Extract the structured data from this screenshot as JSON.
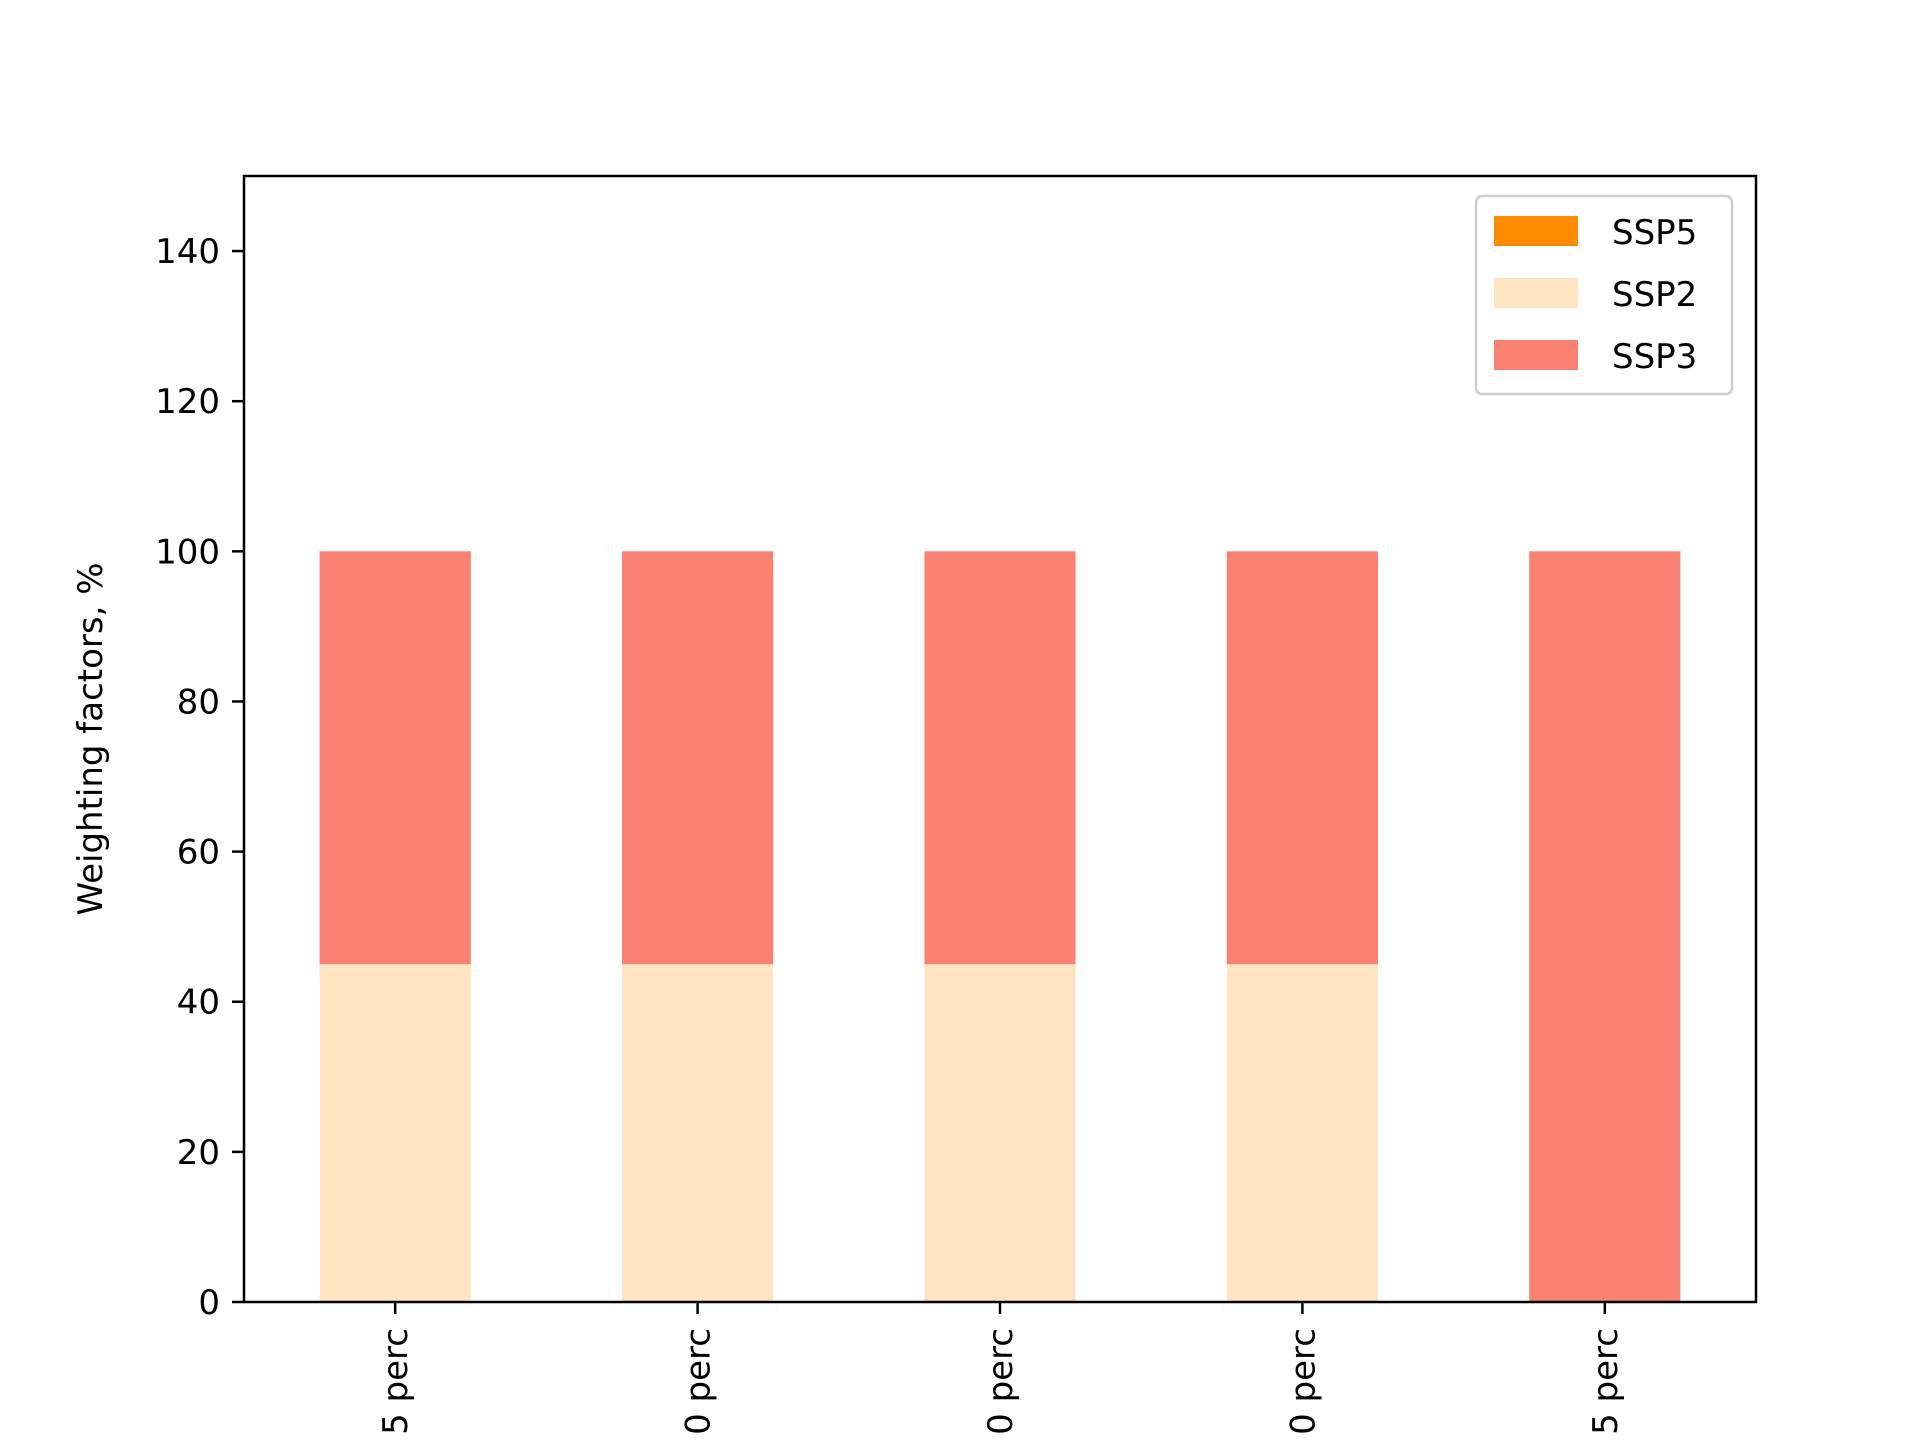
{
  "chart_data": {
    "type": "bar",
    "stacked": true,
    "title": "",
    "xlabel": "",
    "ylabel": "Weighting factors, %",
    "ylim": [
      0,
      150
    ],
    "yticks": [
      0,
      20,
      40,
      60,
      80,
      100,
      120,
      140
    ],
    "grid": false,
    "legend_position": "top-right",
    "categories": [
      "5 perc",
      "0 perc",
      "0 perc",
      "0 perc",
      "5 perc"
    ],
    "series": [
      {
        "name": "SSP5",
        "color": "#ff8c00",
        "values": [
          0,
          0,
          0,
          0,
          0
        ]
      },
      {
        "name": "SSP2",
        "color": "#ffe4c4",
        "values": [
          45,
          45,
          45,
          45,
          0
        ]
      },
      {
        "name": "SSP3",
        "color": "#fa8072",
        "values": [
          55,
          55,
          55,
          55,
          100
        ]
      }
    ]
  }
}
